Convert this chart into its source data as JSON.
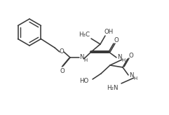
{
  "bg": "#ffffff",
  "lc": "#3a3a3a",
  "lw": 1.15,
  "fs": 6.2,
  "fs_sub": 5.0,
  "xlim": [
    0,
    241
  ],
  "ylim": [
    0,
    164
  ]
}
